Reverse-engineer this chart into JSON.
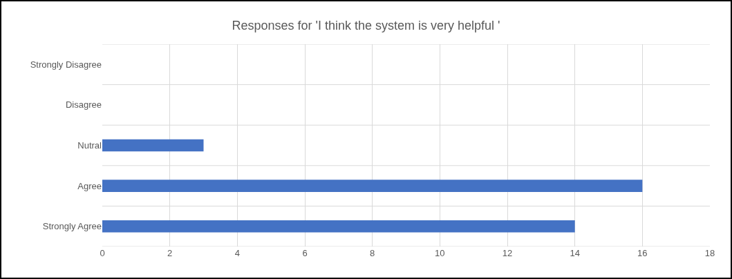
{
  "chart_data": {
    "type": "bar",
    "orientation": "horizontal",
    "title": "Responses for 'I think the system is very helpful '",
    "categories": [
      "Strongly Disagree",
      "Disagree",
      "Nutral",
      "Agree",
      "Strongly Agree"
    ],
    "values": [
      0,
      0,
      3,
      16,
      14
    ],
    "color": "#4472c4",
    "xlim": [
      0,
      18
    ],
    "xticks": [
      0,
      2,
      4,
      6,
      8,
      10,
      12,
      14,
      16,
      18
    ],
    "grid": "x",
    "legend": false
  }
}
